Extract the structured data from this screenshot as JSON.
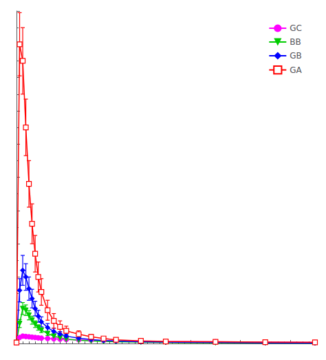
{
  "chart_data": {
    "type": "line",
    "x": [
      0,
      0.25,
      0.5,
      0.75,
      1.0,
      1.25,
      1.5,
      1.75,
      2.0,
      2.5,
      3.0,
      3.5,
      4.0,
      5.0,
      6.0,
      7.0,
      8.0,
      10.0,
      12.0,
      16.0,
      20.0,
      24.0
    ],
    "series": [
      {
        "name": "GC",
        "color": "#FF00FF",
        "marker": "circle",
        "line_style": "solid",
        "values": [
          3,
          18,
          22,
          21,
          20,
          19,
          18,
          17,
          16,
          15,
          14,
          13,
          12,
          11,
          10,
          9,
          8,
          7,
          6,
          5,
          4,
          3
        ],
        "errors": [
          0.3,
          2,
          2.5,
          2.5,
          2,
          2,
          2,
          2,
          1.8,
          1.5,
          1.5,
          1.5,
          1.5,
          1.2,
          1,
          1,
          1,
          0.8,
          0.7,
          0.5,
          0.4,
          0.3
        ]
      },
      {
        "name": "BB",
        "color": "#00CC00",
        "marker": "triangle_down",
        "line_style": "solid",
        "values": [
          3,
          60,
          105,
          100,
          85,
          70,
          58,
          48,
          40,
          30,
          22,
          17,
          13,
          10,
          8,
          6,
          5,
          4,
          3,
          2,
          1.5,
          1.2
        ],
        "errors": [
          0.3,
          12,
          18,
          16,
          14,
          12,
          10,
          8,
          7,
          6,
          5,
          4,
          3,
          2.5,
          2,
          1.5,
          1.2,
          1,
          0.8,
          0.5,
          0.4,
          0.3
        ]
      },
      {
        "name": "GB",
        "color": "#0000FF",
        "marker": "diamond",
        "line_style": "solid",
        "values": [
          3,
          160,
          220,
          200,
          165,
          135,
          105,
          82,
          65,
          48,
          36,
          28,
          22,
          16,
          12,
          9,
          7,
          5,
          4,
          3,
          2,
          1.5
        ],
        "errors": [
          0.5,
          35,
          45,
          40,
          35,
          28,
          22,
          18,
          15,
          12,
          10,
          8,
          6,
          5,
          4,
          3,
          2.5,
          2,
          1.5,
          1,
          0.8,
          0.5
        ]
      },
      {
        "name": "GA",
        "color": "#FF0000",
        "marker": "square_open",
        "line_style": "solid",
        "values": [
          3,
          900,
          850,
          650,
          480,
          360,
          270,
          200,
          155,
          100,
          68,
          50,
          38,
          28,
          20,
          15,
          11,
          8,
          6,
          5,
          4,
          3.5
        ],
        "errors": [
          0.5,
          95,
          100,
          85,
          70,
          60,
          55,
          45,
          40,
          30,
          22,
          18,
          14,
          10,
          7,
          5,
          4,
          3,
          2,
          1.5,
          1.2,
          1
        ]
      }
    ],
    "xlim": [
      0,
      24
    ],
    "xticks": [
      0,
      2,
      4,
      6,
      8,
      10,
      12,
      14,
      16,
      18,
      20,
      22,
      24
    ],
    "ylim": [
      0,
      1000
    ],
    "yticks": [
      0,
      100,
      200,
      300,
      400,
      500,
      600,
      700,
      800,
      900,
      1000
    ],
    "tick_labels": false,
    "grid": false,
    "legend": "upper right"
  }
}
